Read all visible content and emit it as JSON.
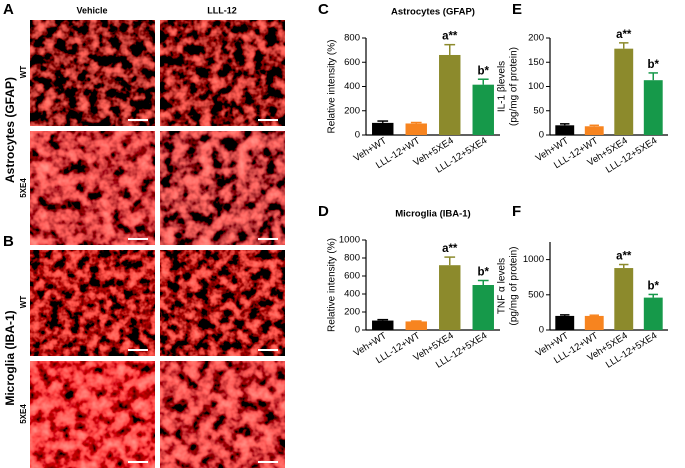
{
  "images": {
    "panels": [
      "A",
      "B"
    ],
    "columns": [
      "Vehicle",
      "LLL-12"
    ],
    "rows": [
      "WT",
      "5XE4"
    ],
    "groups": [
      "Astrocytes (GFAP)",
      "Microglia (IBA-1)"
    ]
  },
  "chart_data": [
    {
      "type": "bar",
      "panel": "C",
      "title": "Astrocytes (GFAP)",
      "ylabel": [
        "Relative intensity (%)"
      ],
      "categories": [
        "Veh+WT",
        "LLL-12+WT",
        "Veh+5XE4",
        "LLL-12+5XE4"
      ],
      "values": [
        100,
        95,
        660,
        415
      ],
      "errors": [
        15,
        8,
        85,
        45
      ],
      "colors": [
        "#000000",
        "#f7841f",
        "#8c8a2c",
        "#16994a"
      ],
      "annotations": [
        null,
        null,
        "a**",
        "b*"
      ],
      "ylim": [
        0,
        800
      ],
      "yticks": [
        0,
        200,
        400,
        600,
        800
      ]
    },
    {
      "type": "bar",
      "panel": "D",
      "title": "Microglia (IBA-1)",
      "ylabel": [
        "Relative intensity (%)"
      ],
      "categories": [
        "Veh+WT",
        "LLL-12+WT",
        "Veh+5XE4",
        "LLL-12+5XE4"
      ],
      "values": [
        105,
        95,
        720,
        500
      ],
      "errors": [
        10,
        5,
        90,
        50
      ],
      "colors": [
        "#000000",
        "#f7841f",
        "#8c8a2c",
        "#16994a"
      ],
      "annotations": [
        null,
        null,
        "a**",
        "b*"
      ],
      "ylim": [
        0,
        1000
      ],
      "yticks": [
        0,
        200,
        400,
        600,
        800,
        1000
      ]
    },
    {
      "type": "bar",
      "panel": "E",
      "ylabel": [
        "IL-1 βlevels",
        "(pg/mg of protein)"
      ],
      "categories": [
        "Veh+WT",
        "LLL-12+WT",
        "Veh+5XE4",
        "LLL-12+5XE4"
      ],
      "values": [
        20,
        18,
        178,
        113
      ],
      "errors": [
        3,
        2,
        12,
        15
      ],
      "colors": [
        "#000000",
        "#f7841f",
        "#8c8a2c",
        "#16994a"
      ],
      "annotations": [
        null,
        null,
        "a**",
        "b*"
      ],
      "ylim": [
        0,
        200
      ],
      "yticks": [
        0,
        50,
        100,
        150,
        200
      ]
    },
    {
      "type": "bar",
      "panel": "F",
      "ylabel": [
        "TNF α levels",
        "(pg/mg of protein)"
      ],
      "categories": [
        "Veh+WT",
        "LLL-12+WT",
        "Veh+5XE4",
        "LLL-12+5XE4"
      ],
      "values": [
        200,
        200,
        880,
        460
      ],
      "errors": [
        15,
        10,
        50,
        45
      ],
      "colors": [
        "#000000",
        "#f7841f",
        "#8c8a2c",
        "#16994a"
      ],
      "annotations": [
        null,
        null,
        "a**",
        "b*"
      ],
      "ylim": [
        0,
        1250
      ],
      "yticks": [
        0,
        500,
        1000
      ]
    }
  ]
}
